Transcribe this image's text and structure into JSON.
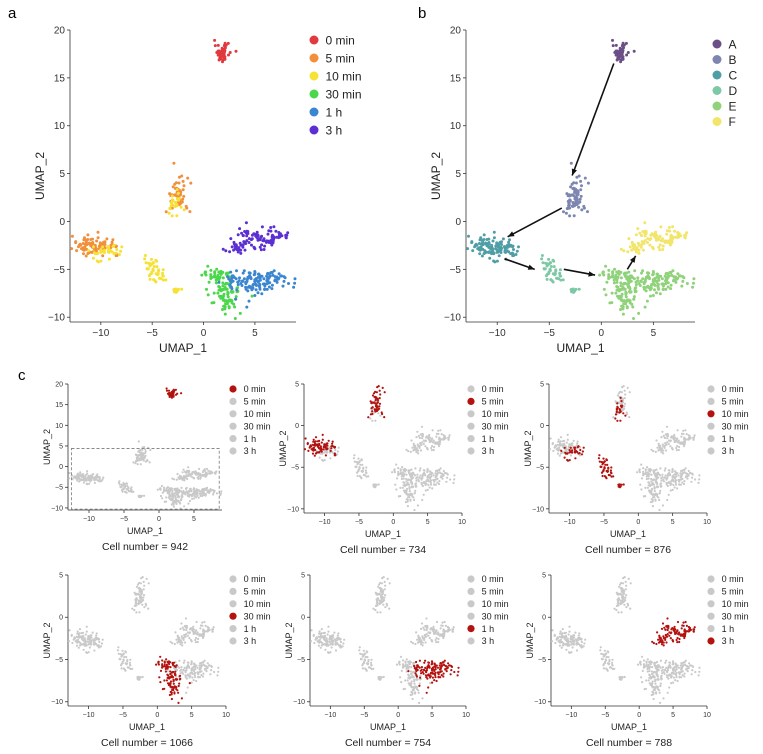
{
  "panel_labels": {
    "a": "a",
    "b": "b",
    "c": "c"
  },
  "colors": {
    "time": {
      "0 min": "#e0393e",
      "5 min": "#f18f3b",
      "10 min": "#f5e235",
      "30 min": "#4ad74a",
      "1 h": "#3a86d0",
      "3 h": "#5b2fd1"
    },
    "cluster": {
      "A": "#6b4f86",
      "B": "#7d86b0",
      "C": "#4f9ea6",
      "D": "#7ec8a6",
      "E": "#8fd27a",
      "F": "#f2e56a"
    },
    "highlight": "#b3120f",
    "background": "#c9c9c9"
  },
  "chart_data": [
    {
      "type": "scatter",
      "title": "",
      "xlabel": "UMAP_1",
      "ylabel": "UMAP_2",
      "xlim": [
        -13,
        9
      ],
      "ylim": [
        -10.5,
        20
      ],
      "xticks": [
        -10,
        -5,
        0,
        5
      ],
      "yticks": [
        -10,
        -5,
        0,
        5,
        10,
        15,
        20
      ],
      "legend": [
        "0 min",
        "5 min",
        "10 min",
        "30 min",
        "1 h",
        "3 h"
      ],
      "legend_position": "right",
      "series": [
        {
          "name": "0 min",
          "centers": [
            [
              1.8,
              17.6
            ]
          ]
        },
        {
          "name": "5 min",
          "centers": [
            [
              -10.5,
              -2.6
            ],
            [
              -2.5,
              3.5
            ]
          ]
        },
        {
          "name": "10 min",
          "centers": [
            [
              -4.6,
              -5.0
            ],
            [
              -2.6,
              2.0
            ],
            [
              -10.0,
              -3.0
            ]
          ]
        },
        {
          "name": "30 min",
          "centers": [
            [
              2.0,
              -7.5
            ],
            [
              1.5,
              -6.0
            ]
          ]
        },
        {
          "name": "1 h",
          "centers": [
            [
              4.5,
              -6.5
            ],
            [
              6.5,
              -6.2
            ],
            [
              3.0,
              -7.0
            ]
          ]
        },
        {
          "name": "3 h",
          "centers": [
            [
              4.5,
              -2.0
            ],
            [
              6.5,
              -1.5
            ],
            [
              3.0,
              -3.0
            ]
          ]
        }
      ]
    },
    {
      "type": "scatter",
      "title": "",
      "xlabel": "UMAP_1",
      "ylabel": "UMAP_2",
      "xlim": [
        -13,
        9
      ],
      "ylim": [
        -10.5,
        20
      ],
      "xticks": [
        -10,
        -5,
        0,
        5
      ],
      "yticks": [
        -10,
        -5,
        0,
        5,
        10,
        15,
        20
      ],
      "legend": [
        "A",
        "B",
        "C",
        "D",
        "E",
        "F"
      ],
      "legend_position": "right",
      "series": [
        {
          "name": "A",
          "centers": [
            [
              1.8,
              17.6
            ]
          ]
        },
        {
          "name": "B",
          "centers": [
            [
              -2.5,
              2.5
            ]
          ]
        },
        {
          "name": "C",
          "centers": [
            [
              -10.5,
              -2.6
            ]
          ]
        },
        {
          "name": "D",
          "centers": [
            [
              -4.8,
              -4.8
            ],
            [
              -2.8,
              -7.0
            ]
          ]
        },
        {
          "name": "E",
          "centers": [
            [
              2.5,
              -6.5
            ],
            [
              5.0,
              -6.2
            ]
          ]
        },
        {
          "name": "F",
          "centers": [
            [
              4.5,
              -2.0
            ],
            [
              6.5,
              -1.5
            ]
          ]
        }
      ],
      "arrows": [
        {
          "from": [
            1.2,
            16.5
          ],
          "to": [
            -2.8,
            4.8
          ]
        },
        {
          "from": [
            -3.8,
            1.4
          ],
          "to": [
            -9.0,
            -1.6
          ]
        },
        {
          "from": [
            -9.3,
            -3.9
          ],
          "to": [
            -6.4,
            -5.0
          ]
        },
        {
          "from": [
            -3.6,
            -5.0
          ],
          "to": [
            -0.6,
            -5.6
          ]
        },
        {
          "from": [
            2.5,
            -5.0
          ],
          "to": [
            3.3,
            -3.6
          ]
        }
      ]
    },
    {
      "type": "scatter",
      "title": "",
      "xlabel": "UMAP_1",
      "ylabel": "UMAP_2",
      "xlim": [
        -13,
        9
      ],
      "ylim": [
        -10.5,
        20
      ],
      "xticks": [
        -10,
        -5,
        0,
        5
      ],
      "yticks": [
        -10,
        -5,
        0,
        5,
        10,
        15,
        20
      ],
      "legend": [
        "0 min",
        "5 min",
        "10 min",
        "30 min",
        "1 h",
        "3 h"
      ],
      "highlighted": "0 min",
      "dashed_box": {
        "x": [
          -12.5,
          8.6
        ],
        "y": [
          -10.3,
          4.4
        ]
      },
      "caption": "Cell number = 942"
    },
    {
      "type": "scatter",
      "title": "",
      "xlabel": "UMAP_1",
      "ylabel": "UMAP_2",
      "xlim": [
        -13,
        10
      ],
      "ylim": [
        -10.5,
        5
      ],
      "xticks": [
        -10,
        -5,
        0,
        5,
        10
      ],
      "yticks": [
        -10,
        -5,
        0,
        5
      ],
      "legend": [
        "0 min",
        "5 min",
        "10 min",
        "30 min",
        "1 h",
        "3 h"
      ],
      "highlighted": "5 min",
      "caption": "Cell number = 734"
    },
    {
      "type": "scatter",
      "title": "",
      "xlabel": "UMAP_1",
      "ylabel": "UMAP_2",
      "xlim": [
        -13,
        10
      ],
      "ylim": [
        -10.5,
        5
      ],
      "xticks": [
        -10,
        -5,
        0,
        5,
        10
      ],
      "yticks": [
        -10,
        -5,
        0,
        5
      ],
      "legend": [
        "0 min",
        "5 min",
        "10 min",
        "30 min",
        "1 h",
        "3 h"
      ],
      "highlighted": "10 min",
      "caption": "Cell number = 876"
    },
    {
      "type": "scatter",
      "title": "",
      "xlabel": "UMAP_1",
      "ylabel": "UMAP_2",
      "xlim": [
        -13,
        10
      ],
      "ylim": [
        -10.5,
        5
      ],
      "xticks": [
        -10,
        -5,
        0,
        5,
        10
      ],
      "yticks": [
        -10,
        -5,
        0,
        5
      ],
      "legend": [
        "0 min",
        "5 min",
        "10 min",
        "30 min",
        "1 h",
        "3 h"
      ],
      "highlighted": "30 min",
      "caption": "Cell number = 1066"
    },
    {
      "type": "scatter",
      "title": "",
      "xlabel": "UMAP_1",
      "ylabel": "UMAP_2",
      "xlim": [
        -13,
        10
      ],
      "ylim": [
        -10.5,
        5
      ],
      "xticks": [
        -10,
        -5,
        0,
        5,
        10
      ],
      "yticks": [
        -10,
        -5,
        0,
        5
      ],
      "legend": [
        "0 min",
        "5 min",
        "10 min",
        "30 min",
        "1 h",
        "3 h"
      ],
      "highlighted": "1 h",
      "caption": "Cell number = 754"
    },
    {
      "type": "scatter",
      "title": "",
      "xlabel": "UMAP_1",
      "ylabel": "UMAP_2",
      "xlim": [
        -13,
        10
      ],
      "ylim": [
        -10.5,
        5
      ],
      "xticks": [
        -10,
        -5,
        0,
        5,
        10
      ],
      "yticks": [
        -10,
        -5,
        0,
        5
      ],
      "legend": [
        "0 min",
        "5 min",
        "10 min",
        "30 min",
        "1 h",
        "3 h"
      ],
      "highlighted": "3 h",
      "caption": "Cell number = 788"
    }
  ]
}
